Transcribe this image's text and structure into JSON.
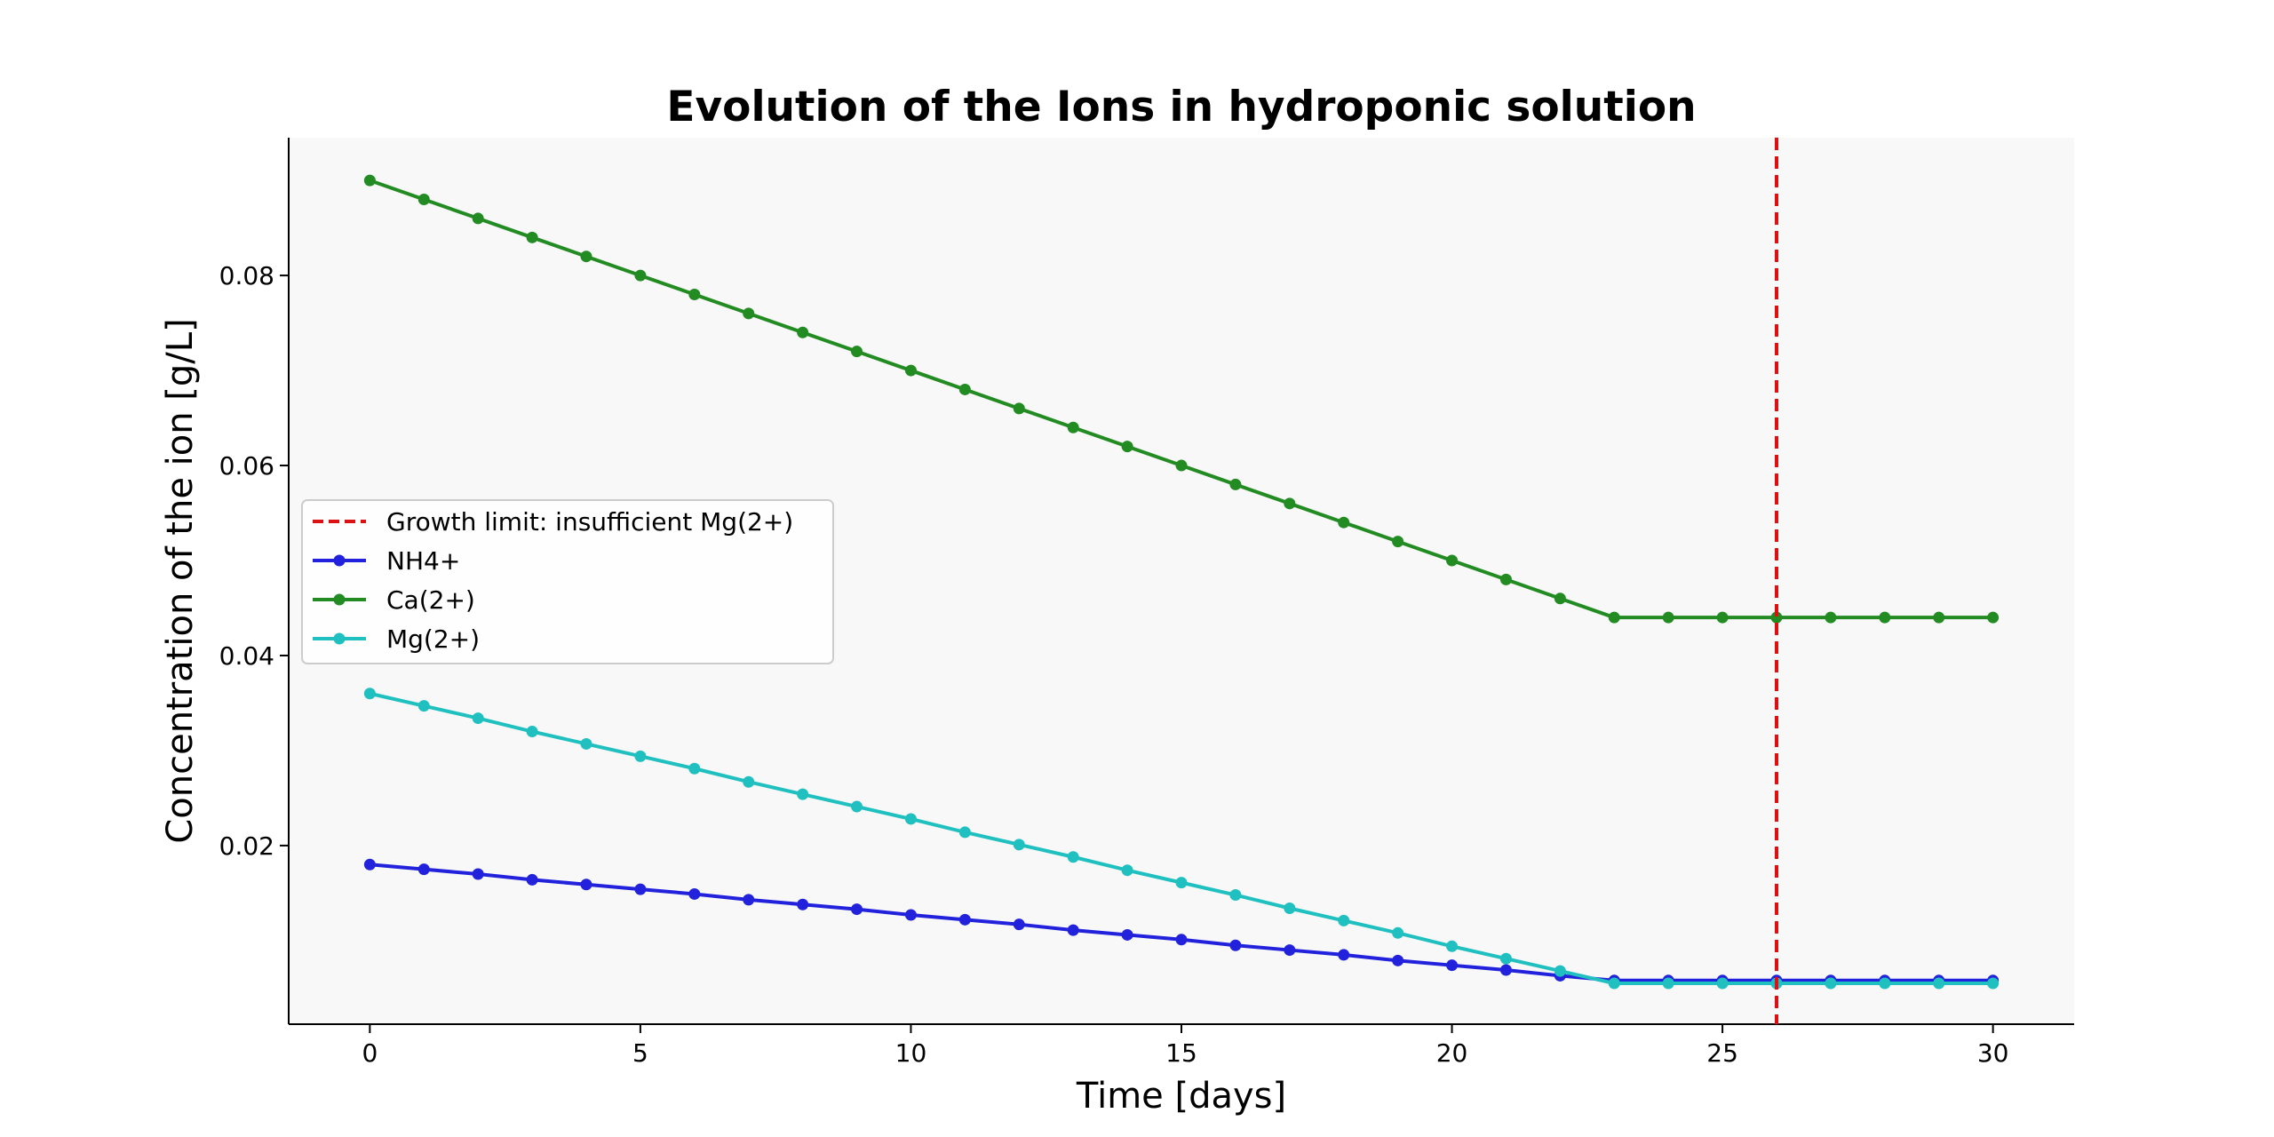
{
  "chart_data": {
    "type": "line",
    "title": "Evolution of the Ions in hydroponic solution",
    "xlabel": "Time [days]",
    "ylabel": "Concentration of the ion [g/L]",
    "xlim": [
      -1.5,
      31.5
    ],
    "ylim": [
      0.0012,
      0.0945
    ],
    "xticks": [
      0,
      5,
      10,
      15,
      20,
      25,
      30
    ],
    "yticks": [
      0.02,
      0.04,
      0.06,
      0.08
    ],
    "ytick_labels": [
      "0.02",
      "0.04",
      "0.06",
      "0.08"
    ],
    "grid": false,
    "legend_position": "center-left",
    "background": "#f8f8f8",
    "x": [
      0,
      1,
      2,
      3,
      4,
      5,
      6,
      7,
      8,
      9,
      10,
      11,
      12,
      13,
      14,
      15,
      16,
      17,
      18,
      19,
      20,
      21,
      22,
      23,
      24,
      25,
      26,
      27,
      28,
      29,
      30
    ],
    "series": [
      {
        "name": "NH4+",
        "color": "#2222dd",
        "values": [
          0.018,
          0.0175,
          0.017,
          0.0164,
          0.0159,
          0.0154,
          0.0149,
          0.0143,
          0.0138,
          0.0133,
          0.0127,
          0.0122,
          0.0117,
          0.0111,
          0.0106,
          0.0101,
          0.0095,
          0.009,
          0.0085,
          0.0079,
          0.0074,
          0.0069,
          0.0063,
          0.0058,
          0.0058,
          0.0058,
          0.0058,
          0.0058,
          0.0058,
          0.0058,
          0.0058
        ]
      },
      {
        "name": "Ca(2+)",
        "color": "#228b22",
        "values": [
          0.09,
          0.088,
          0.086,
          0.084,
          0.082,
          0.08,
          0.078,
          0.076,
          0.074,
          0.072,
          0.07,
          0.068,
          0.066,
          0.064,
          0.062,
          0.06,
          0.058,
          0.056,
          0.054,
          0.052,
          0.05,
          0.048,
          0.046,
          0.044,
          0.044,
          0.044,
          0.044,
          0.044,
          0.044,
          0.044,
          0.044
        ]
      },
      {
        "name": "Mg(2+)",
        "color": "#20c0c0",
        "values": [
          0.036,
          0.0347,
          0.0334,
          0.032,
          0.0307,
          0.0294,
          0.0281,
          0.0267,
          0.0254,
          0.0241,
          0.0228,
          0.0214,
          0.0201,
          0.0188,
          0.0174,
          0.0161,
          0.0148,
          0.0134,
          0.0121,
          0.0108,
          0.0094,
          0.0081,
          0.0068,
          0.0055,
          0.0055,
          0.0055,
          0.0055,
          0.0055,
          0.0055,
          0.0055,
          0.0055
        ]
      }
    ],
    "vline": {
      "x": 26,
      "label": "Growth limit: insufficient Mg(2+)",
      "color": "#dd1111"
    }
  }
}
